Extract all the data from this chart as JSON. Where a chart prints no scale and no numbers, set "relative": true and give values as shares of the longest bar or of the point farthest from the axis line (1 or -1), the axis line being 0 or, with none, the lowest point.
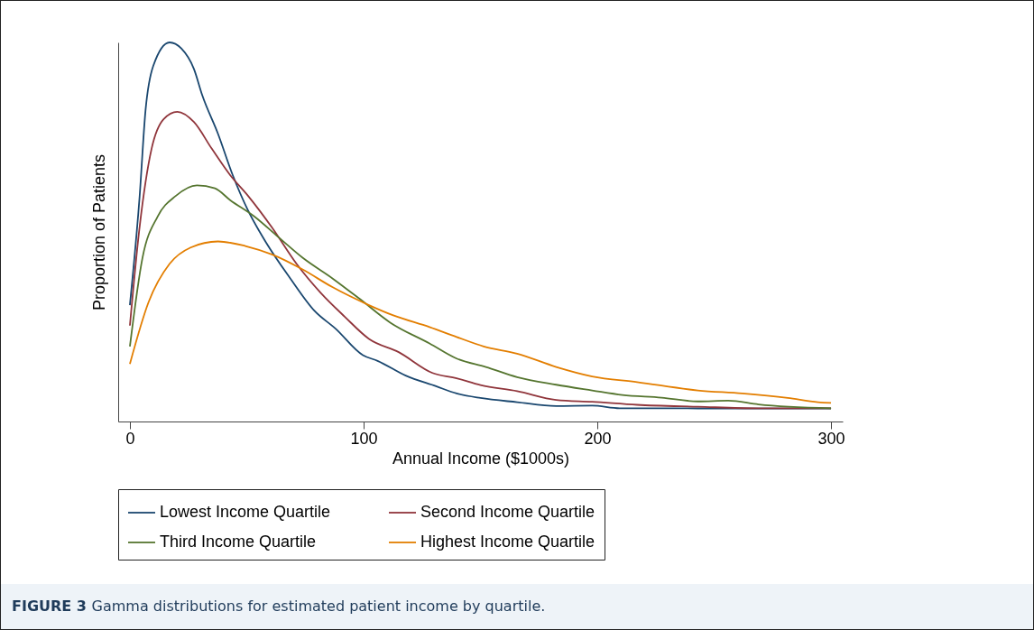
{
  "chart_data": {
    "type": "line",
    "xlabel": "Annual Income ($1000s)",
    "ylabel": "Proportion of Patients",
    "relative": true,
    "xlim": [
      -5,
      305
    ],
    "xticks": [
      0,
      100,
      200,
      300
    ],
    "grid": false,
    "legend": "bottom",
    "annotations": [
      "FIGURE 3 Gamma distributions for estimated patient income by quartile."
    ],
    "series": [
      {
        "name": "Lowest Income Quartile",
        "color": "#1a476f",
        "x": [
          0,
          4.1,
          6.7,
          10,
          17,
          22,
          27.4,
          31,
          37.7,
          44,
          50.6,
          58.4,
          68.7,
          79,
          88,
          99.7,
          106,
          118,
          131,
          139.8,
          150,
          165.7,
          182.4,
          197.8,
          209.6,
          230,
          256,
          300
        ],
        "values": [
          0.307,
          0.588,
          0.821,
          0.938,
          1.0,
          0.984,
          0.93,
          0.86,
          0.759,
          0.65,
          0.556,
          0.471,
          0.377,
          0.292,
          0.245,
          0.175,
          0.16,
          0.121,
          0.093,
          0.074,
          0.062,
          0.051,
          0.041,
          0.042,
          0.035,
          0.035,
          0.034,
          0.034
        ]
      },
      {
        "name": "Second Income Quartile",
        "color": "#90353b",
        "x": [
          0,
          4.1,
          9.3,
          14.5,
          20.3,
          27.4,
          35,
          42.9,
          50.6,
          61,
          71.3,
          81.7,
          92,
          102.3,
          115,
          129.5,
          139.8,
          150,
          165.7,
          182.4,
          197.8,
          217,
          243,
          269,
          300
        ],
        "values": [
          0.253,
          0.51,
          0.72,
          0.798,
          0.817,
          0.79,
          0.72,
          0.65,
          0.595,
          0.51,
          0.416,
          0.339,
          0.276,
          0.218,
          0.183,
          0.128,
          0.114,
          0.096,
          0.08,
          0.057,
          0.052,
          0.044,
          0.039,
          0.035,
          0.035
        ]
      },
      {
        "name": "Third Income Quartile",
        "color": "#55752f",
        "x": [
          0,
          5.4,
          11.9,
          19.6,
          28.7,
          36.4,
          42.9,
          53.2,
          63.6,
          73.9,
          86.8,
          98.4,
          111.4,
          128.2,
          139.8,
          152.3,
          165.7,
          182.4,
          197.8,
          210.7,
          227.5,
          243,
          256,
          269,
          300
        ],
        "values": [
          0.198,
          0.432,
          0.541,
          0.595,
          0.623,
          0.615,
          0.584,
          0.541,
          0.486,
          0.432,
          0.377,
          0.323,
          0.261,
          0.206,
          0.166,
          0.144,
          0.117,
          0.097,
          0.082,
          0.07,
          0.063,
          0.053,
          0.055,
          0.045,
          0.035
        ]
      },
      {
        "name": "Highest Income Quartile",
        "color": "#e37e00",
        "x": [
          0,
          8,
          17,
          26,
          37.7,
          49.4,
          61,
          73.9,
          86.8,
          102.3,
          112.7,
          128.2,
          139.8,
          151.4,
          165.7,
          182.4,
          197.8,
          217,
          243,
          262,
          281.5,
          294.4,
          300
        ],
        "values": [
          0.152,
          0.315,
          0.416,
          0.459,
          0.475,
          0.463,
          0.44,
          0.401,
          0.354,
          0.307,
          0.28,
          0.249,
          0.223,
          0.198,
          0.179,
          0.144,
          0.119,
          0.104,
          0.082,
          0.074,
          0.062,
          0.051,
          0.049
        ]
      }
    ]
  }
}
